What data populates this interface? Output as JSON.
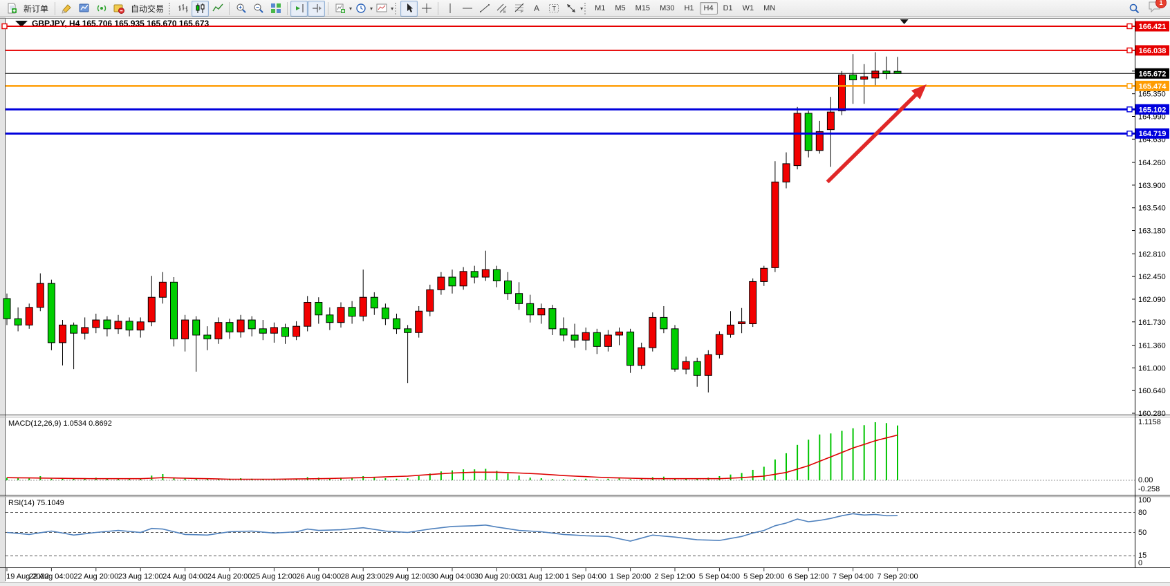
{
  "toolbar": {
    "new_order_label": "新订单",
    "autotrading_label": "自动交易",
    "notification_count": "1",
    "timeframes": [
      "M1",
      "M5",
      "M15",
      "M30",
      "H1",
      "H4",
      "D1",
      "W1",
      "MN"
    ],
    "active_timeframe": "H4"
  },
  "chart": {
    "symbol_period": "GBPJPY, H4",
    "ohlc_text": "165.706 165.935 165.670 165.673",
    "open": "165.706",
    "high": "165.935",
    "low": "165.670",
    "close": "165.673"
  },
  "price_axis": {
    "ticks": [
      "165.710",
      "165.350",
      "164.990",
      "164.630",
      "164.260",
      "163.900",
      "163.540",
      "163.180",
      "162.810",
      "162.450",
      "162.090",
      "161.730",
      "161.360",
      "161.000",
      "160.640",
      "160.280"
    ],
    "badges": [
      {
        "value": "166.421",
        "color": "#e60000"
      },
      {
        "value": "166.038",
        "color": "#e60000"
      },
      {
        "value": "165.672",
        "color": "#000000"
      },
      {
        "value": "165.474",
        "color": "#ff9c00"
      },
      {
        "value": "165.102",
        "color": "#0000dd"
      },
      {
        "value": "164.719",
        "color": "#0000dd"
      }
    ]
  },
  "time_axis": {
    "labels": [
      "19 Aug 2022",
      "22 Aug 04:00",
      "22 Aug 20:00",
      "23 Aug 12:00",
      "24 Aug 04:00",
      "24 Aug 20:00",
      "25 Aug 12:00",
      "26 Aug 04:00",
      "28 Aug 23:00",
      "29 Aug 12:00",
      "30 Aug 04:00",
      "30 Aug 20:00",
      "31 Aug 12:00",
      "1 Sep 04:00",
      "1 Sep 20:00",
      "2 Sep 12:00",
      "5 Sep 04:00",
      "5 Sep 20:00",
      "6 Sep 12:00",
      "7 Sep 04:00",
      "7 Sep 20:00"
    ]
  },
  "indicators": {
    "macd": {
      "label": "MACD(12,26,9) 1.0534 0.8692",
      "scale_top": "1.1158",
      "scale_zero": "0.00",
      "scale_bottom": "-0.258"
    },
    "rsi": {
      "label": "RSI(14) 75.1049",
      "scale": [
        "100",
        "80",
        "50",
        "15",
        "0"
      ],
      "levels": [
        80,
        50,
        15
      ]
    }
  },
  "chart_data": {
    "type": "candlestick",
    "symbol": "GBPJPY",
    "timeframe": "H4",
    "note": "red body = bullish, green body = bearish (CN convention)",
    "bull_color": "#f20000",
    "bear_color": "#00ce00",
    "wick_color": "#000000",
    "y_axis": {
      "min": 160.28,
      "max": 166.47
    },
    "candles": [
      [
        162.1,
        162.18,
        161.68,
        161.78
      ],
      [
        161.78,
        161.96,
        161.58,
        161.68
      ],
      [
        161.68,
        162.02,
        161.62,
        161.96
      ],
      [
        161.96,
        162.5,
        161.9,
        162.34
      ],
      [
        162.34,
        162.4,
        161.28,
        161.4
      ],
      [
        161.4,
        161.76,
        161.04,
        161.68
      ],
      [
        161.68,
        161.72,
        160.98,
        161.55
      ],
      [
        161.55,
        161.8,
        161.45,
        161.64
      ],
      [
        161.64,
        161.86,
        161.55,
        161.76
      ],
      [
        161.76,
        161.82,
        161.5,
        161.62
      ],
      [
        161.62,
        161.84,
        161.54,
        161.74
      ],
      [
        161.74,
        161.8,
        161.5,
        161.6
      ],
      [
        161.6,
        161.8,
        161.48,
        161.73
      ],
      [
        161.73,
        162.46,
        161.66,
        162.12
      ],
      [
        162.12,
        162.52,
        162.02,
        162.36
      ],
      [
        162.36,
        162.44,
        161.34,
        161.46
      ],
      [
        161.46,
        161.84,
        161.26,
        161.76
      ],
      [
        161.76,
        161.82,
        160.94,
        161.52
      ],
      [
        161.52,
        161.66,
        161.28,
        161.46
      ],
      [
        161.46,
        161.8,
        161.38,
        161.72
      ],
      [
        161.72,
        161.78,
        161.46,
        161.57
      ],
      [
        161.57,
        161.84,
        161.48,
        161.76
      ],
      [
        161.76,
        161.82,
        161.5,
        161.62
      ],
      [
        161.62,
        161.76,
        161.44,
        161.55
      ],
      [
        161.55,
        161.72,
        161.4,
        161.64
      ],
      [
        161.64,
        161.7,
        161.38,
        161.5
      ],
      [
        161.5,
        161.74,
        161.44,
        161.66
      ],
      [
        161.66,
        162.14,
        161.58,
        162.04
      ],
      [
        162.04,
        162.12,
        161.7,
        161.84
      ],
      [
        161.84,
        161.96,
        161.6,
        161.72
      ],
      [
        161.72,
        162.04,
        161.64,
        161.96
      ],
      [
        161.96,
        162.06,
        161.7,
        161.82
      ],
      [
        161.82,
        162.56,
        161.74,
        162.12
      ],
      [
        162.12,
        162.2,
        161.84,
        161.95
      ],
      [
        161.95,
        162.02,
        161.68,
        161.78
      ],
      [
        161.78,
        161.86,
        161.54,
        161.62
      ],
      [
        161.62,
        161.68,
        160.76,
        161.56
      ],
      [
        161.56,
        161.98,
        161.48,
        161.9
      ],
      [
        161.9,
        162.32,
        161.82,
        162.24
      ],
      [
        162.24,
        162.52,
        162.16,
        162.44
      ],
      [
        162.44,
        162.56,
        162.18,
        162.3
      ],
      [
        162.3,
        162.6,
        162.24,
        162.53
      ],
      [
        162.53,
        162.62,
        162.34,
        162.44
      ],
      [
        162.44,
        162.86,
        162.38,
        162.56
      ],
      [
        162.56,
        162.62,
        162.28,
        162.38
      ],
      [
        162.38,
        162.52,
        162.08,
        162.18
      ],
      [
        162.18,
        162.36,
        161.92,
        162.02
      ],
      [
        162.02,
        162.16,
        161.72,
        161.84
      ],
      [
        161.84,
        162.02,
        161.7,
        161.94
      ],
      [
        161.94,
        162.0,
        161.52,
        161.62
      ],
      [
        161.62,
        161.8,
        161.42,
        161.52
      ],
      [
        161.52,
        161.7,
        161.32,
        161.44
      ],
      [
        161.44,
        161.64,
        161.28,
        161.56
      ],
      [
        161.56,
        161.62,
        161.22,
        161.34
      ],
      [
        161.34,
        161.6,
        161.26,
        161.52
      ],
      [
        161.52,
        161.64,
        161.36,
        161.57
      ],
      [
        161.57,
        161.62,
        160.92,
        161.04
      ],
      [
        161.04,
        161.4,
        160.98,
        161.32
      ],
      [
        161.32,
        161.88,
        161.26,
        161.8
      ],
      [
        161.8,
        161.98,
        161.55,
        161.62
      ],
      [
        161.62,
        161.68,
        160.94,
        160.98
      ],
      [
        160.98,
        161.18,
        160.9,
        161.1
      ],
      [
        161.1,
        161.16,
        160.7,
        160.88
      ],
      [
        160.88,
        161.28,
        160.61,
        161.21
      ],
      [
        161.21,
        161.58,
        161.15,
        161.53
      ],
      [
        161.53,
        161.9,
        161.48,
        161.68
      ],
      [
        161.7,
        161.95,
        161.55,
        161.73
      ],
      [
        161.7,
        162.42,
        161.65,
        162.37
      ],
      [
        162.37,
        162.62,
        162.3,
        162.58
      ],
      [
        162.59,
        164.28,
        162.52,
        163.95
      ],
      [
        163.95,
        164.42,
        163.85,
        164.24
      ],
      [
        164.21,
        165.14,
        164.15,
        165.04
      ],
      [
        165.04,
        165.08,
        164.34,
        164.45
      ],
      [
        164.45,
        164.92,
        164.4,
        164.75
      ],
      [
        164.78,
        165.3,
        164.19,
        165.06
      ],
      [
        165.08,
        165.71,
        165.01,
        165.65
      ],
      [
        165.65,
        165.98,
        165.19,
        165.57
      ],
      [
        165.58,
        165.82,
        165.19,
        165.62
      ],
      [
        165.6,
        166.01,
        165.48,
        165.71
      ],
      [
        165.71,
        165.94,
        165.58,
        165.67
      ],
      [
        165.706,
        165.935,
        165.67,
        165.673
      ]
    ],
    "hlines": [
      {
        "price": 166.421,
        "color": "#e60000",
        "width": 2,
        "handles": "both"
      },
      {
        "price": 166.038,
        "color": "#e60000",
        "width": 2,
        "handles": "right"
      },
      {
        "price": 165.672,
        "color": "#000000",
        "width": 1,
        "handles": "none"
      },
      {
        "price": 165.474,
        "color": "#ff9c00",
        "width": 2.5,
        "handles": "right"
      },
      {
        "price": 165.102,
        "color": "#0000dd",
        "width": 3,
        "handles": "right"
      },
      {
        "price": 164.719,
        "color": "#0000dd",
        "width": 3,
        "handles": "right"
      }
    ],
    "arrow": {
      "from_bar": 73.7,
      "from_price": 163.95,
      "to_bar": 82.6,
      "to_price": 165.5,
      "color": "#e02828"
    },
    "shift_marker_bar": 80.6,
    "macd": {
      "histogram": [
        0.05,
        0.04,
        0.05,
        0.08,
        0.03,
        0.04,
        0.03,
        0.04,
        0.05,
        0.04,
        0.04,
        0.03,
        0.04,
        0.09,
        0.12,
        0.05,
        0.04,
        0.03,
        0.02,
        0.03,
        0.03,
        0.04,
        0.03,
        0.02,
        0.03,
        0.02,
        0.03,
        0.06,
        0.05,
        0.04,
        0.05,
        0.04,
        0.08,
        0.06,
        0.04,
        0.03,
        0.04,
        0.08,
        0.13,
        0.17,
        0.19,
        0.21,
        0.21,
        0.22,
        0.18,
        0.13,
        0.09,
        0.05,
        0.04,
        0.02,
        0.02,
        0.02,
        0.03,
        0.02,
        0.03,
        0.04,
        0.02,
        0.03,
        0.06,
        0.07,
        0.04,
        0.04,
        0.03,
        0.05,
        0.08,
        0.11,
        0.14,
        0.2,
        0.26,
        0.4,
        0.52,
        0.68,
        0.78,
        0.88,
        0.9,
        0.95,
        1.0,
        1.06,
        1.1158,
        1.1,
        1.0534
      ],
      "signal_points": [
        [
          0,
          0.05
        ],
        [
          4,
          0.04
        ],
        [
          8,
          0.03
        ],
        [
          12,
          0.03
        ],
        [
          14,
          0.05
        ],
        [
          16,
          0.04
        ],
        [
          20,
          0.02
        ],
        [
          24,
          0.02
        ],
        [
          28,
          0.03
        ],
        [
          32,
          0.05
        ],
        [
          36,
          0.08
        ],
        [
          38,
          0.11
        ],
        [
          40,
          0.14
        ],
        [
          42,
          0.155
        ],
        [
          44,
          0.155
        ],
        [
          46,
          0.14
        ],
        [
          48,
          0.12
        ],
        [
          50,
          0.09
        ],
        [
          52,
          0.07
        ],
        [
          54,
          0.05
        ],
        [
          56,
          0.04
        ],
        [
          58,
          0.03
        ],
        [
          60,
          0.03
        ],
        [
          62,
          0.03
        ],
        [
          64,
          0.03
        ],
        [
          66,
          0.05
        ],
        [
          68,
          0.08
        ],
        [
          70,
          0.15
        ],
        [
          72,
          0.28
        ],
        [
          74,
          0.45
        ],
        [
          76,
          0.62
        ],
        [
          78,
          0.76
        ],
        [
          80,
          0.8692
        ]
      ],
      "hist_color": "#00c400",
      "signal_color": "#dd0000",
      "value": 1.0534,
      "signal_value": 0.8692,
      "max": 1.1158,
      "min_scale": -0.258
    },
    "rsi": {
      "points": [
        [
          0,
          50
        ],
        [
          2,
          47
        ],
        [
          4,
          52
        ],
        [
          6,
          46
        ],
        [
          8,
          50
        ],
        [
          10,
          53
        ],
        [
          12,
          50
        ],
        [
          13,
          56
        ],
        [
          14,
          55
        ],
        [
          16,
          47
        ],
        [
          18,
          46
        ],
        [
          20,
          51
        ],
        [
          22,
          52
        ],
        [
          24,
          49
        ],
        [
          26,
          51
        ],
        [
          27,
          55
        ],
        [
          28,
          53
        ],
        [
          30,
          54
        ],
        [
          32,
          57
        ],
        [
          34,
          52
        ],
        [
          36,
          50
        ],
        [
          38,
          55
        ],
        [
          40,
          59
        ],
        [
          42,
          60
        ],
        [
          43,
          61
        ],
        [
          44,
          58
        ],
        [
          46,
          53
        ],
        [
          48,
          51
        ],
        [
          50,
          47
        ],
        [
          52,
          45
        ],
        [
          54,
          44
        ],
        [
          56,
          37
        ],
        [
          58,
          46
        ],
        [
          60,
          43
        ],
        [
          62,
          39
        ],
        [
          64,
          38
        ],
        [
          66,
          44
        ],
        [
          67,
          49
        ],
        [
          68,
          53
        ],
        [
          69,
          60
        ],
        [
          70,
          64
        ],
        [
          71,
          70
        ],
        [
          72,
          66
        ],
        [
          73,
          68
        ],
        [
          74,
          71
        ],
        [
          75,
          75
        ],
        [
          76,
          78
        ],
        [
          77,
          76
        ],
        [
          78,
          77
        ],
        [
          79,
          75
        ],
        [
          80,
          75.1
        ]
      ],
      "line_color": "#4f81bd",
      "value": 75.1049
    }
  }
}
